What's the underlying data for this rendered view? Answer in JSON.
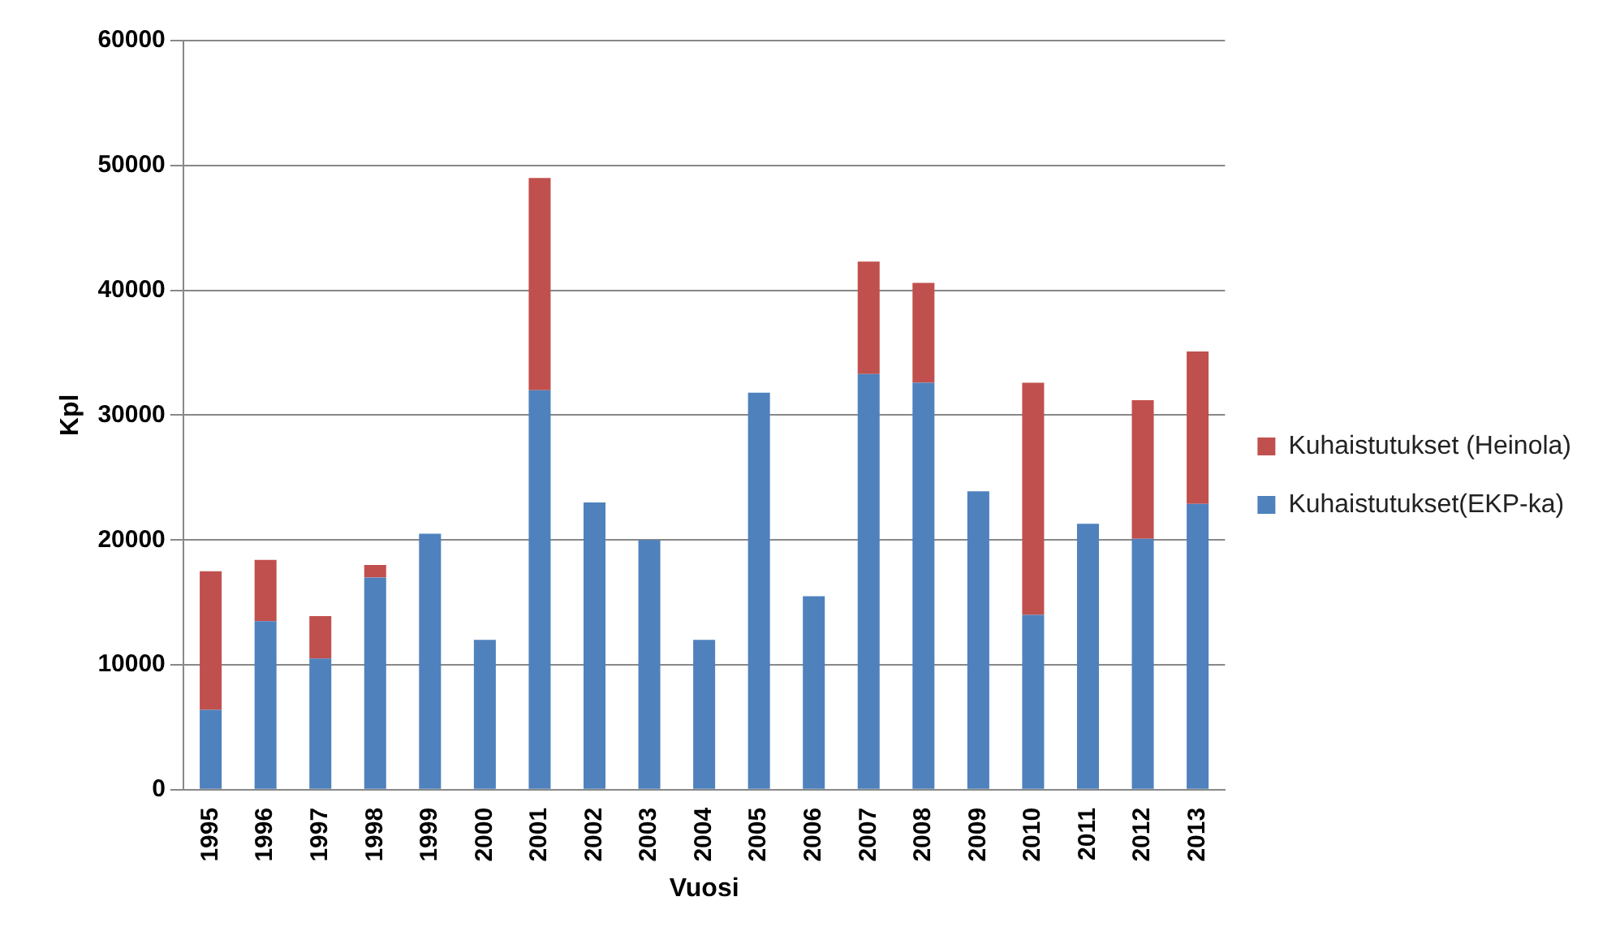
{
  "chart_data": {
    "type": "bar",
    "stacked": true,
    "xlabel": "Vuosi",
    "ylabel": "Kpl",
    "categories": [
      "1995",
      "1996",
      "1997",
      "1998",
      "1999",
      "2000",
      "2001",
      "2002",
      "2003",
      "2004",
      "2005",
      "2006",
      "2007",
      "2008",
      "2009",
      "2010",
      "2011",
      "2012",
      "2013"
    ],
    "series": [
      {
        "name": "Kuhaistutukset(EKP-ka)",
        "color": "#4f81bd",
        "values": [
          6400,
          13500,
          10500,
          17000,
          20500,
          12000,
          32000,
          23000,
          20000,
          12000,
          31800,
          15500,
          33300,
          32600,
          23900,
          14000,
          21300,
          20100,
          22900
        ]
      },
      {
        "name": "Kuhaistutukset (Heinola)",
        "color": "#c0504d",
        "values": [
          11100,
          4900,
          3400,
          1000,
          null,
          null,
          17000,
          null,
          null,
          null,
          null,
          null,
          9000,
          8000,
          null,
          18600,
          null,
          11100,
          12200
        ]
      }
    ],
    "ylim": [
      0,
      60000
    ],
    "yticks": [
      0,
      10000,
      20000,
      30000,
      40000,
      50000,
      60000
    ],
    "grid": "y",
    "legend": "right"
  }
}
